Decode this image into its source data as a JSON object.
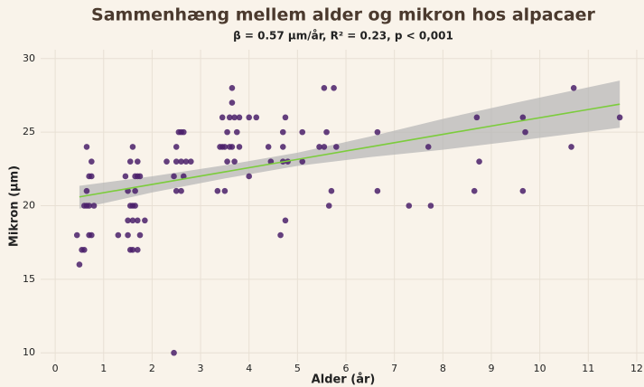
{
  "chart_data": {
    "type": "scatter",
    "title": "Sammenhæng mellem alder og mikron hos alpacaer",
    "subtitle": "β = 0.57 µm/år, R² = 0.23, p < 0,001",
    "x_label": "Alder (år)",
    "y_label": "Mikron (µm)",
    "xlim": [
      -0.3,
      12.15
    ],
    "ylim": [
      9.4,
      30.6
    ],
    "xticks": [
      0,
      1,
      2,
      3,
      4,
      5,
      6,
      7,
      8,
      9,
      10,
      11,
      12
    ],
    "yticks": [
      10,
      15,
      20,
      25,
      30
    ],
    "grid": true,
    "color": "#4a1e6a",
    "x": [
      0.45,
      0.5,
      0.55,
      0.6,
      0.6,
      0.65,
      0.65,
      0.65,
      0.7,
      0.7,
      0.7,
      0.75,
      0.75,
      0.75,
      0.8,
      1.3,
      1.45,
      1.5,
      1.5,
      1.5,
      1.55,
      1.55,
      1.55,
      1.6,
      1.6,
      1.6,
      1.6,
      1.65,
      1.65,
      1.65,
      1.7,
      1.7,
      1.7,
      1.7,
      1.75,
      1.75,
      1.85,
      2.3,
      2.45,
      2.45,
      2.5,
      2.5,
      2.5,
      2.55,
      2.6,
      2.6,
      2.6,
      2.65,
      2.7,
      2.8,
      2.65,
      3.35,
      3.4,
      3.45,
      3.45,
      3.5,
      3.5,
      3.55,
      3.55,
      3.6,
      3.6,
      3.65,
      3.65,
      3.65,
      3.7,
      3.7,
      3.75,
      3.8,
      3.8,
      4.0,
      4.0,
      4.15,
      4.4,
      4.45,
      4.65,
      4.7,
      4.7,
      4.7,
      4.75,
      4.75,
      4.8,
      5.1,
      5.1,
      5.45,
      5.55,
      5.55,
      5.6,
      5.65,
      5.7,
      5.75,
      5.8,
      6.65,
      6.65,
      7.3,
      7.7,
      7.75,
      8.65,
      8.7,
      8.75,
      9.65,
      9.65,
      9.7,
      10.65,
      10.7,
      11.65
    ],
    "values": [
      18,
      16,
      17,
      17,
      20,
      20,
      24,
      21,
      22,
      20,
      18,
      23,
      22,
      18,
      20,
      18,
      22,
      21,
      19,
      18,
      23,
      20,
      17,
      24,
      20,
      19,
      17,
      22,
      21,
      20,
      23,
      22,
      19,
      17,
      18,
      22,
      19,
      23,
      10,
      22,
      24,
      23,
      21,
      25,
      23,
      21,
      25,
      22,
      23,
      23,
      25,
      21,
      24,
      26,
      24,
      21,
      24,
      23,
      25,
      26,
      24,
      28,
      27,
      24,
      23,
      26,
      25,
      26,
      24,
      22,
      26,
      26,
      24,
      23,
      18,
      25,
      24,
      23,
      19,
      26,
      23,
      25,
      23,
      24,
      24,
      28,
      25,
      20,
      21,
      28,
      24,
      25,
      21,
      20,
      24,
      20,
      21,
      26,
      23,
      21,
      26,
      25,
      24,
      28,
      26
    ],
    "fit": {
      "color": "#7ccc3c",
      "band_color": "#b8b8b8",
      "x": [
        0.5,
        2,
        3.5,
        5,
        6.5,
        8,
        9.5,
        11.65
      ],
      "y": [
        20.6,
        21.45,
        22.3,
        23.15,
        24.0,
        24.85,
        25.7,
        26.9
      ],
      "lower": [
        19.8,
        20.9,
        21.85,
        22.7,
        23.3,
        23.8,
        24.4,
        25.3
      ],
      "upper": [
        21.35,
        22.0,
        22.75,
        23.6,
        24.7,
        25.9,
        27.0,
        28.5
      ]
    }
  }
}
